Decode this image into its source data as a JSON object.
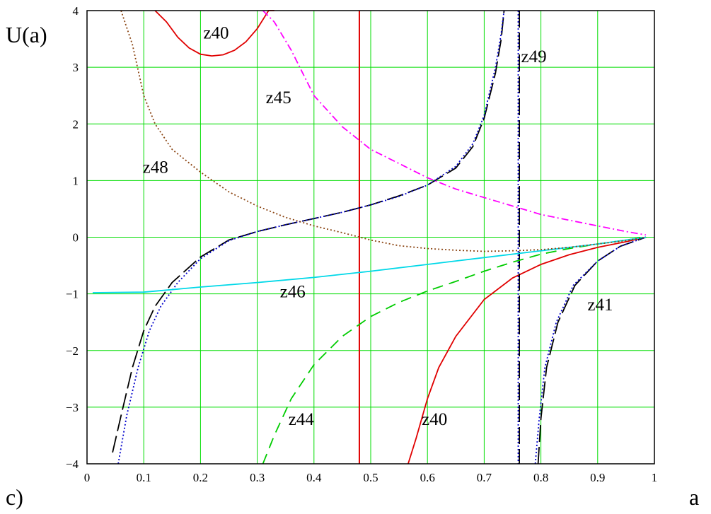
{
  "panel_label": "c)",
  "chart_data": {
    "type": "line",
    "xlabel": "a",
    "ylabel": "U(a)",
    "xlim": [
      0,
      1
    ],
    "ylim": [
      -4,
      4
    ],
    "grid": true,
    "x_ticks": [
      "0",
      "0.1",
      "0.2",
      "0.3",
      "0.4",
      "0.5",
      "0.6",
      "0.7",
      "0.8",
      "0.9",
      "1"
    ],
    "y_ticks": [
      "4",
      "3",
      "2",
      "1",
      "0",
      "−1",
      "−2",
      "−3",
      "−4"
    ],
    "x_tick_values": [
      0,
      0.1,
      0.2,
      0.3,
      0.4,
      0.5,
      0.6,
      0.7,
      0.8,
      0.9,
      1
    ],
    "y_tick_values": [
      4,
      3,
      2,
      1,
      0,
      -1,
      -2,
      -3,
      -4
    ],
    "series": [
      {
        "name": "z40",
        "color": "#e00000",
        "dash": "solid",
        "segments": [
          [
            [
              0.12,
              4.1
            ],
            [
              0.14,
              3.8
            ],
            [
              0.16,
              3.53
            ],
            [
              0.18,
              3.34
            ],
            [
              0.2,
              3.23
            ],
            [
              0.22,
              3.2
            ],
            [
              0.24,
              3.22
            ],
            [
              0.26,
              3.3
            ],
            [
              0.28,
              3.45
            ],
            [
              0.3,
              3.68
            ],
            [
              0.32,
              4.0
            ],
            [
              0.33,
              4.1
            ]
          ],
          [
            [
              0.566,
              -4.1
            ],
            [
              0.58,
              -3.55
            ],
            [
              0.6,
              -2.85
            ],
            [
              0.62,
              -2.3
            ],
            [
              0.65,
              -1.75
            ],
            [
              0.7,
              -1.1
            ],
            [
              0.75,
              -0.72
            ],
            [
              0.8,
              -0.48
            ],
            [
              0.85,
              -0.31
            ],
            [
              0.9,
              -0.18
            ],
            [
              0.95,
              -0.08
            ],
            [
              0.985,
              0.0
            ]
          ]
        ],
        "vertical_line_x": 0.48
      },
      {
        "name": "z41",
        "color": "#000000",
        "dash": "long-dash",
        "segments": [
          [
            [
              0.045,
              -3.8
            ],
            [
              0.06,
              -3.15
            ],
            [
              0.08,
              -2.3
            ],
            [
              0.1,
              -1.65
            ],
            [
              0.12,
              -1.22
            ],
            [
              0.15,
              -0.8
            ],
            [
              0.2,
              -0.35
            ],
            [
              0.25,
              -0.05
            ],
            [
              0.3,
              0.1
            ],
            [
              0.35,
              0.22
            ],
            [
              0.4,
              0.33
            ],
            [
              0.45,
              0.44
            ],
            [
              0.5,
              0.57
            ],
            [
              0.55,
              0.73
            ],
            [
              0.6,
              0.92
            ],
            [
              0.65,
              1.22
            ],
            [
              0.68,
              1.6
            ],
            [
              0.7,
              2.1
            ],
            [
              0.72,
              2.9
            ],
            [
              0.73,
              3.5
            ],
            [
              0.735,
              4.1
            ]
          ],
          [
            [
              0.762,
              4.1
            ],
            [
              0.762,
              -4.1
            ]
          ],
          [
            [
              0.795,
              -4.1
            ],
            [
              0.8,
              -3.2
            ],
            [
              0.81,
              -2.3
            ],
            [
              0.83,
              -1.5
            ],
            [
              0.86,
              -0.85
            ],
            [
              0.9,
              -0.42
            ],
            [
              0.94,
              -0.16
            ],
            [
              0.985,
              0.0
            ]
          ]
        ]
      },
      {
        "name": "z49",
        "color": "#0000cc",
        "dash": "dotted",
        "segments": [
          [
            [
              0.055,
              -4.1
            ],
            [
              0.07,
              -3.15
            ],
            [
              0.09,
              -2.3
            ],
            [
              0.11,
              -1.65
            ],
            [
              0.13,
              -1.22
            ],
            [
              0.16,
              -0.8
            ],
            [
              0.2,
              -0.38
            ],
            [
              0.25,
              -0.06
            ],
            [
              0.3,
              0.1
            ],
            [
              0.35,
              0.22
            ],
            [
              0.4,
              0.33
            ],
            [
              0.45,
              0.44
            ],
            [
              0.5,
              0.57
            ],
            [
              0.55,
              0.72
            ],
            [
              0.6,
              0.92
            ],
            [
              0.65,
              1.25
            ],
            [
              0.68,
              1.65
            ],
            [
              0.7,
              2.15
            ],
            [
              0.72,
              3.0
            ],
            [
              0.73,
              3.6
            ],
            [
              0.735,
              4.1
            ]
          ],
          [
            [
              0.76,
              4.1
            ],
            [
              0.76,
              -4.1
            ]
          ],
          [
            [
              0.79,
              -4.1
            ],
            [
              0.797,
              -3.2
            ],
            [
              0.807,
              -2.3
            ],
            [
              0.827,
              -1.5
            ],
            [
              0.857,
              -0.85
            ],
            [
              0.9,
              -0.42
            ],
            [
              0.94,
              -0.16
            ],
            [
              0.985,
              0.0
            ]
          ]
        ]
      },
      {
        "name": "z44",
        "color": "#00cc00",
        "dash": "dashed",
        "segments": [
          [
            [
              0.31,
              -4.1
            ],
            [
              0.33,
              -3.5
            ],
            [
              0.36,
              -2.85
            ],
            [
              0.4,
              -2.25
            ],
            [
              0.45,
              -1.75
            ],
            [
              0.5,
              -1.4
            ],
            [
              0.55,
              -1.15
            ],
            [
              0.6,
              -0.95
            ],
            [
              0.65,
              -0.78
            ],
            [
              0.7,
              -0.6
            ],
            [
              0.75,
              -0.44
            ],
            [
              0.8,
              -0.3
            ],
            [
              0.85,
              -0.2
            ],
            [
              0.9,
              -0.12
            ],
            [
              0.95,
              -0.05
            ],
            [
              0.985,
              0.0
            ]
          ]
        ]
      },
      {
        "name": "z45",
        "color": "#ff00ff",
        "dash": "dash-dot",
        "segments": [
          [
            [
              0.31,
              4.1
            ],
            [
              0.33,
              3.8
            ],
            [
              0.36,
              3.3
            ],
            [
              0.4,
              2.5
            ],
            [
              0.45,
              1.95
            ],
            [
              0.5,
              1.55
            ],
            [
              0.55,
              1.3
            ],
            [
              0.6,
              1.05
            ],
            [
              0.65,
              0.85
            ],
            [
              0.7,
              0.7
            ],
            [
              0.75,
              0.55
            ],
            [
              0.8,
              0.4
            ],
            [
              0.85,
              0.3
            ],
            [
              0.9,
              0.2
            ],
            [
              0.95,
              0.1
            ],
            [
              0.985,
              0.04
            ]
          ]
        ]
      },
      {
        "name": "z46",
        "color": "#00d8e8",
        "dash": "solid",
        "segments": [
          [
            [
              0.01,
              -0.98
            ],
            [
              0.1,
              -0.97
            ],
            [
              0.2,
              -0.88
            ],
            [
              0.3,
              -0.8
            ],
            [
              0.4,
              -0.71
            ],
            [
              0.5,
              -0.6
            ],
            [
              0.6,
              -0.48
            ],
            [
              0.7,
              -0.36
            ],
            [
              0.8,
              -0.24
            ],
            [
              0.9,
              -0.12
            ],
            [
              0.985,
              0.0
            ]
          ]
        ]
      },
      {
        "name": "z48",
        "color": "#8b4513",
        "dash": "dotted",
        "segments": [
          [
            [
              0.06,
              4.0
            ],
            [
              0.08,
              3.4
            ],
            [
              0.1,
              2.5
            ],
            [
              0.12,
              2.0
            ],
            [
              0.15,
              1.55
            ],
            [
              0.2,
              1.15
            ],
            [
              0.25,
              0.8
            ],
            [
              0.3,
              0.55
            ],
            [
              0.35,
              0.35
            ],
            [
              0.4,
              0.2
            ],
            [
              0.45,
              0.08
            ],
            [
              0.5,
              -0.05
            ],
            [
              0.55,
              -0.15
            ],
            [
              0.6,
              -0.2
            ],
            [
              0.65,
              -0.23
            ],
            [
              0.7,
              -0.25
            ],
            [
              0.75,
              -0.24
            ],
            [
              0.8,
              -0.22
            ],
            [
              0.85,
              -0.18
            ],
            [
              0.9,
              -0.12
            ],
            [
              0.95,
              -0.06
            ],
            [
              0.985,
              0.0
            ]
          ]
        ]
      }
    ],
    "annotations": [
      {
        "text": "z40",
        "x": 0.205,
        "y": 3.62
      },
      {
        "text": "z49",
        "x": 0.765,
        "y": 3.2
      },
      {
        "text": "z45",
        "x": 0.315,
        "y": 2.48
      },
      {
        "text": "z48",
        "x": 0.098,
        "y": 1.25
      },
      {
        "text": "z46",
        "x": 0.34,
        "y": -0.95
      },
      {
        "text": "z41",
        "x": 0.882,
        "y": -1.18
      },
      {
        "text": "z44",
        "x": 0.355,
        "y": -3.2
      },
      {
        "text": "z40",
        "x": 0.59,
        "y": -3.2
      }
    ]
  }
}
